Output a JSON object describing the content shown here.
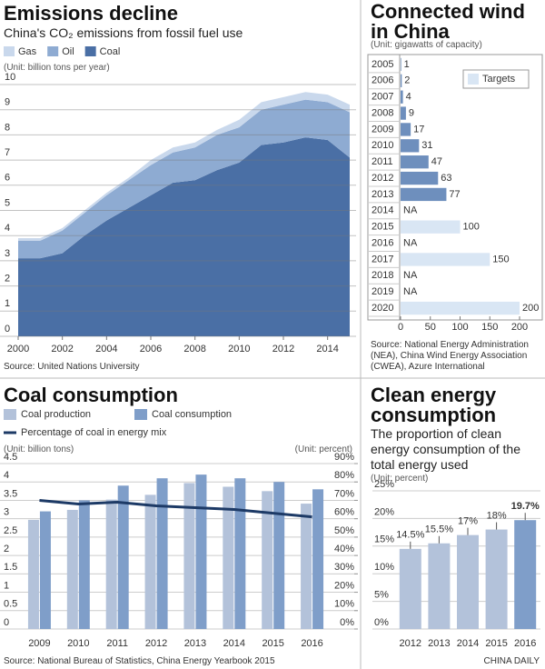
{
  "credit": "CHINA DAILY",
  "chart_data": [
    {
      "type": "area",
      "stacked": true,
      "title": "Emissions decline",
      "subtitle": "China's CO₂ emissions from fossil fuel use",
      "y_label": "(Unit: billion tons per year)",
      "source": "Source: United Nations University",
      "x": [
        2000,
        2001,
        2002,
        2003,
        2004,
        2005,
        2006,
        2007,
        2008,
        2009,
        2010,
        2011,
        2012,
        2013,
        2014,
        2015
      ],
      "series": [
        {
          "name": "Gas",
          "color": "#c9d8ec",
          "values": [
            0.1,
            0.1,
            0.1,
            0.1,
            0.1,
            0.1,
            0.2,
            0.2,
            0.2,
            0.2,
            0.3,
            0.3,
            0.3,
            0.3,
            0.3,
            0.3
          ]
        },
        {
          "name": "Oil",
          "color": "#8eabd2",
          "values": [
            0.7,
            0.7,
            0.9,
            0.9,
            1.0,
            1.1,
            1.2,
            1.2,
            1.3,
            1.4,
            1.4,
            1.4,
            1.5,
            1.5,
            1.5,
            1.8
          ]
        },
        {
          "name": "Coal",
          "color": "#4a6fa5",
          "values": [
            3.1,
            3.1,
            3.3,
            4.0,
            4.6,
            5.1,
            5.6,
            6.1,
            6.2,
            6.6,
            6.9,
            7.6,
            7.7,
            7.9,
            7.8,
            7.1
          ]
        }
      ],
      "xlim": [
        2000,
        2015
      ],
      "xticks": [
        2000,
        2002,
        2004,
        2006,
        2008,
        2010,
        2012,
        2014
      ],
      "ylim": [
        0,
        10
      ],
      "yticks": [
        0,
        1,
        2,
        3,
        4,
        5,
        6,
        7,
        8,
        9,
        10
      ],
      "grid": true,
      "legend": "top"
    },
    {
      "type": "bar",
      "orientation": "horizontal",
      "title": "Connected wind in China",
      "y_label": "(Unit: gigawatts of capacity)",
      "source": "Source: National Energy Administration (NEA), China Wind Energy Association (CWEA), Azure International",
      "categories": [
        "2005",
        "2006",
        "2007",
        "2008",
        "2009",
        "2010",
        "2011",
        "2012",
        "2013",
        "2014",
        "2015",
        "2016",
        "2017",
        "2018",
        "2019",
        "2020"
      ],
      "series": [
        {
          "color": "#6e8fbd",
          "values": [
            1,
            2,
            4,
            9,
            17,
            31,
            47,
            63,
            77,
            null,
            null,
            null,
            null,
            null,
            null,
            null
          ],
          "value_labels": [
            null,
            null,
            null,
            null,
            null,
            null,
            null,
            null,
            null,
            "NA",
            null,
            "NA",
            null,
            "NA",
            "NA",
            null
          ]
        },
        {
          "name": "Targets",
          "color": "#d9e6f4",
          "values": [
            null,
            null,
            null,
            null,
            null,
            null,
            null,
            null,
            null,
            null,
            100,
            null,
            150,
            null,
            null,
            200
          ]
        }
      ],
      "xlim": [
        0,
        200
      ],
      "xticks": [
        0,
        50,
        100,
        150,
        200
      ],
      "legend": "upper right"
    },
    {
      "type": "bar",
      "title": "Coal consumption",
      "y_label": "(Unit: billion tons)",
      "y2_label": "(Unit: percent)",
      "source": "Source: National Bureau of Statistics, China Energy Yearbook 2015",
      "categories": [
        "2009",
        "2010",
        "2011",
        "2012",
        "2013",
        "2014",
        "2015",
        "2016"
      ],
      "series": [
        {
          "name": "Coal production",
          "color": "#b3c2da",
          "values": [
            2.97,
            3.24,
            3.52,
            3.65,
            3.97,
            3.87,
            3.75,
            3.41
          ]
        },
        {
          "name": "Coal consumption",
          "color": "#7f9ec9",
          "values": [
            3.2,
            3.5,
            3.9,
            4.1,
            4.2,
            4.1,
            4.0,
            3.8
          ]
        },
        {
          "name": "Percentage of coal in energy mix",
          "type": "line",
          "axis": "y2",
          "color": "#1d3a66",
          "values": [
            70,
            68,
            69,
            67,
            66,
            65,
            63,
            61
          ]
        }
      ],
      "ylim": [
        0,
        4.5
      ],
      "yticks": [
        0,
        0.5,
        1,
        1.5,
        2,
        2.5,
        3,
        3.5,
        4,
        4.5
      ],
      "y2lim": [
        0,
        90
      ],
      "y2ticks": [
        {
          "value": 0,
          "label": "0%"
        },
        {
          "value": 10,
          "label": "10%"
        },
        {
          "value": 20,
          "label": "20%"
        },
        {
          "value": 30,
          "label": "30%"
        },
        {
          "value": 40,
          "label": "40%"
        },
        {
          "value": 50,
          "label": "50%"
        },
        {
          "value": 60,
          "label": "60%"
        },
        {
          "value": 70,
          "label": "70%"
        },
        {
          "value": 80,
          "label": "80%"
        },
        {
          "value": 90,
          "label": "90%"
        }
      ],
      "grid": true,
      "legend": "top"
    },
    {
      "type": "bar",
      "title": "Clean energy consumption",
      "subtitle": "The proportion of clean energy consumption of the total energy used",
      "y_label": "(Unit: percent)",
      "categories": [
        "2012",
        "2013",
        "2014",
        "2015",
        "2016"
      ],
      "values": [
        14.5,
        15.5,
        17,
        18,
        19.7
      ],
      "value_labels": [
        "14.5%",
        "15.5%",
        "17%",
        "18%",
        "19.7%"
      ],
      "colors": [
        "#b3c2da",
        "#b3c2da",
        "#b3c2da",
        "#b3c2da",
        "#7f9ec9"
      ],
      "ylim": [
        0,
        25
      ],
      "yticks": [
        {
          "value": 0,
          "label": "0%"
        },
        {
          "value": 5,
          "label": "5%"
        },
        {
          "value": 10,
          "label": "10%"
        },
        {
          "value": 15,
          "label": "15%"
        },
        {
          "value": 20,
          "label": "20%"
        },
        {
          "value": 25,
          "label": "25%"
        }
      ],
      "grid": true
    }
  ]
}
